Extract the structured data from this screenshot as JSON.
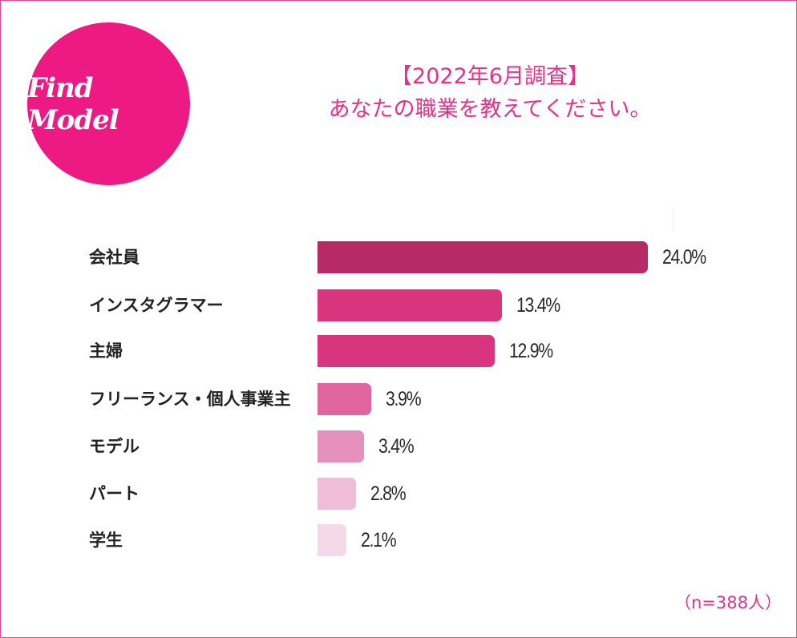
{
  "logo": {
    "text": "Find Model"
  },
  "header": {
    "line1": "【2022年6月調査】",
    "line2": "あなたの職業を教えてください。"
  },
  "chart_data": {
    "type": "bar",
    "orientation": "horizontal",
    "categories": [
      "会社員",
      "インスタグラマー",
      "主婦",
      "フリーランス・個人事業主",
      "モデル",
      "パート",
      "学生"
    ],
    "values": [
      24.0,
      13.4,
      12.9,
      3.9,
      3.4,
      2.8,
      2.1
    ],
    "labels": [
      "24.0%",
      "13.4%",
      "12.9%",
      "3.9%",
      "3.4%",
      "2.8%",
      "2.1%"
    ],
    "colors": [
      "#b62a66",
      "#d9347e",
      "#d9347e",
      "#e0659f",
      "#e690bd",
      "#f0bdd9",
      "#f4d9e8"
    ],
    "title": "",
    "xlabel": "",
    "ylabel": ""
  },
  "note": "（n=388人）"
}
